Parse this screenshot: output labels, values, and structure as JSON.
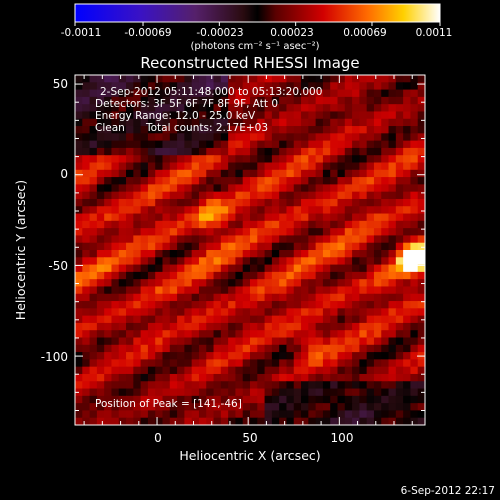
{
  "chart_data": {
    "type": "heatmap",
    "title": "Reconstructed RHESSI Image",
    "xlabel": "Heliocentric X (arcsec)",
    "ylabel": "Heliocentric Y (arcsec)",
    "xlim": [
      -45,
      147
    ],
    "ylim": [
      -138,
      55
    ],
    "xticks": [
      "0",
      "50",
      "100"
    ],
    "xtick_values": [
      0,
      50,
      100
    ],
    "yticks": [
      "50",
      "0",
      "-50",
      "-100"
    ],
    "ytick_values": [
      50,
      0,
      -50,
      -100
    ],
    "colorbar": {
      "ticks": [
        "-0.0011",
        "-0.00069",
        "-0.00023",
        "0.00023",
        "0.00069",
        "0.0011"
      ],
      "tick_values": [
        -0.0011,
        -0.00069,
        -0.00023,
        0.00023,
        0.00069,
        0.0011
      ],
      "min": -0.0011,
      "max": 0.0011,
      "unit_label": "(photons cm⁻² s⁻¹ asec⁻²)"
    },
    "annotations": {
      "time_range": "2-Sep-2012 05:11:48.000 to 05:13:20.000",
      "detectors": "Detectors: 3F 5F 6F 7F 8F 9F, Att 0",
      "energy_range": "Energy Range: 12.0 - 25.0 keV",
      "algorithm": "Clean",
      "total_counts": "Total counts: 2.17E+03",
      "peak_position": "Position of Peak = [141,-46]"
    },
    "peak": [
      141,
      -46
    ],
    "grid": false,
    "legend": "none"
  },
  "footer": {
    "date": "6-Sep-2012 22:17"
  },
  "colors": {
    "background": "#000000",
    "text": "#ffffff"
  }
}
